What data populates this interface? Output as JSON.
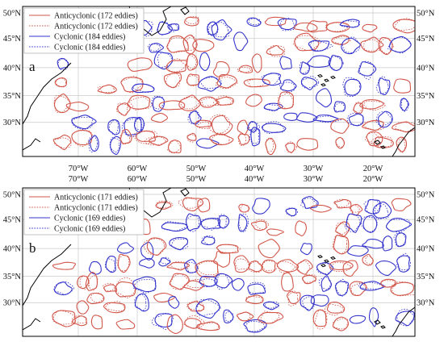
{
  "figure": {
    "panels": [
      {
        "label": "a",
        "lon_ticks": [
          "70°W",
          "60°W",
          "50°W",
          "40°W",
          "30°W",
          "20°W"
        ],
        "lat_ticks_left": [
          "50°N",
          "45°N",
          "40°N",
          "35°N",
          "30°N"
        ],
        "lat_ticks_right": [
          "50°N",
          "45°N",
          "40°N",
          "35°N",
          "30°N"
        ],
        "legend": [
          {
            "text": "Anticyclonic (172 eddies)",
            "color": "#d2564a",
            "style": "solid"
          },
          {
            "text": "Anticyclonic (172 eddies)",
            "color": "#d2564a",
            "style": "dotted"
          },
          {
            "text": "Cyclonic (184 eddies)",
            "color": "#3333cc",
            "style": "solid"
          },
          {
            "text": "Cyclonic (184 eddies)",
            "color": "#3333cc",
            "style": "dotted"
          }
        ]
      },
      {
        "label": "b",
        "lon_ticks": [
          "70°W",
          "60°W",
          "50°W",
          "40°W",
          "30°W",
          "20°W"
        ],
        "lat_ticks_left": [
          "50°N",
          "45°N",
          "40°N",
          "35°N",
          "30°N"
        ],
        "lat_ticks_right": [
          "50°N",
          "45°N",
          "40°N",
          "35°N",
          "30°N"
        ],
        "legend": [
          {
            "text": "Anticyclonic (171 eddies)",
            "color": "#d2564a",
            "style": "solid"
          },
          {
            "text": "Anticyclonic (171 eddies)",
            "color": "#d2564a",
            "style": "dotted"
          },
          {
            "text": "Cyclonic (169 eddies)",
            "color": "#3333cc",
            "style": "solid"
          },
          {
            "text": "Cyclonic (169 eddies)",
            "color": "#3333cc",
            "style": "dotted"
          }
        ]
      }
    ],
    "colors": {
      "anticyclonic": "#d2564a",
      "cyclonic": "#3333cc",
      "gridline": "#c8c8c8",
      "coast": "#000000"
    }
  }
}
